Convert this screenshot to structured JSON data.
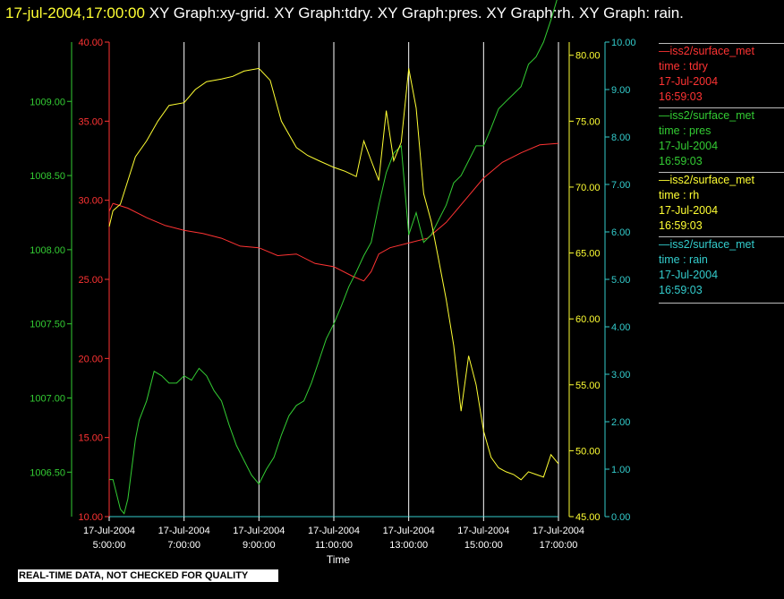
{
  "header": {
    "timestamp": "17-jul-2004,17:00:00",
    "graphs": "  XY Graph:xy-grid.  XY Graph:tdry.  XY Graph:pres.  XY Graph:rh.  XY Graph: rain."
  },
  "notice": "REAL-TIME DATA, NOT CHECKED FOR QUALITY",
  "colors": {
    "tdry": "#ff3333",
    "pres": "#33cc33",
    "rh": "#ffff33",
    "rain": "#33cccc",
    "grid": "#ffffff"
  },
  "legend": [
    {
      "name": "—iss2/surface_met",
      "var": "time : tdry",
      "date": "17-Jul-2004",
      "time": "16:59:03",
      "color": "#ff3333"
    },
    {
      "name": "—iss2/surface_met",
      "var": "time : pres",
      "date": "17-Jul-2004",
      "time": "16:59:03",
      "color": "#33cc33"
    },
    {
      "name": "—iss2/surface_met",
      "var": "time : rh",
      "date": "17-Jul-2004",
      "time": "16:59:03",
      "color": "#ffff33"
    },
    {
      "name": "—iss2/surface_met",
      "var": "time : rain",
      "date": "17-Jul-2004",
      "time": "16:59:03",
      "color": "#33cccc"
    }
  ],
  "chart_data": {
    "type": "line",
    "xlabel": "Time",
    "x_ticks": [
      {
        "date": "17-Jul-2004",
        "time": "5:00:00"
      },
      {
        "date": "17-Jul-2004",
        "time": "7:00:00"
      },
      {
        "date": "17-Jul-2004",
        "time": "9:00:00"
      },
      {
        "date": "17-Jul-2004",
        "time": "11:00:00"
      },
      {
        "date": "17-Jul-2004",
        "time": "13:00:00"
      },
      {
        "date": "17-Jul-2004",
        "time": "15:00:00"
      },
      {
        "date": "17-Jul-2004",
        "time": "17:00:00"
      }
    ],
    "xlim": [
      5,
      17
    ],
    "grid": "vertical",
    "axes": [
      {
        "series": "tdry",
        "ylim": [
          10,
          40
        ],
        "ticks": [
          "10.00",
          "15.00",
          "20.00",
          "25.00",
          "30.00",
          "35.00",
          "40.00"
        ]
      },
      {
        "series": "pres",
        "ylim": [
          1006.2,
          1009.4
        ],
        "ticks": [
          "1006.50",
          "1007.00",
          "1007.50",
          "1008.00",
          "1008.50",
          "1009.00"
        ]
      },
      {
        "series": "rh",
        "ylim": [
          45,
          81
        ],
        "ticks": [
          "45.00",
          "50.00",
          "55.00",
          "60.00",
          "65.00",
          "70.00",
          "75.00",
          "80.00"
        ]
      },
      {
        "series": "rain",
        "ylim": [
          0,
          10
        ],
        "ticks": [
          "0.00",
          "1.00",
          "2.00",
          "3.00",
          "4.00",
          "5.00",
          "6.00",
          "7.00",
          "8.00",
          "9.00",
          "10.00"
        ]
      }
    ],
    "series": [
      {
        "name": "tdry",
        "x": [
          5.0,
          5.1,
          5.5,
          6.0,
          6.5,
          7.0,
          7.5,
          8.0,
          8.5,
          9.0,
          9.5,
          10.0,
          10.5,
          11.0,
          11.5,
          11.8,
          12.0,
          12.2,
          12.5,
          13.0,
          13.5,
          14.0,
          14.5,
          15.0,
          15.5,
          16.0,
          16.5,
          17.0
        ],
        "values": [
          29.3,
          29.8,
          29.5,
          28.9,
          28.4,
          28.1,
          27.9,
          27.6,
          27.1,
          27.0,
          26.5,
          26.6,
          26.0,
          25.8,
          25.2,
          24.9,
          25.5,
          26.6,
          27.0,
          27.3,
          27.6,
          28.6,
          30.0,
          31.4,
          32.4,
          33.0,
          33.5,
          33.6
        ]
      },
      {
        "name": "pres",
        "x": [
          5.0,
          5.1,
          5.2,
          5.3,
          5.4,
          5.5,
          5.6,
          5.7,
          5.8,
          6.0,
          6.2,
          6.4,
          6.6,
          6.8,
          7.0,
          7.2,
          7.4,
          7.6,
          7.8,
          8.0,
          8.2,
          8.4,
          8.6,
          8.8,
          9.0,
          9.2,
          9.4,
          9.6,
          9.8,
          10.0,
          10.2,
          10.4,
          10.6,
          10.8,
          11.0,
          11.2,
          11.4,
          11.6,
          11.8,
          12.0,
          12.2,
          12.4,
          12.6,
          12.8,
          13.0,
          13.2,
          13.4,
          13.6,
          13.8,
          14.0,
          14.2,
          14.4,
          14.6,
          14.8,
          15.0,
          15.2,
          15.4,
          15.6,
          15.8,
          16.0,
          16.2,
          16.4,
          16.6,
          16.8,
          17.0
        ],
        "values": [
          1006.45,
          1006.45,
          1006.35,
          1006.25,
          1006.22,
          1006.32,
          1006.52,
          1006.72,
          1006.85,
          1006.98,
          1007.18,
          1007.15,
          1007.1,
          1007.1,
          1007.15,
          1007.12,
          1007.2,
          1007.15,
          1007.05,
          1006.98,
          1006.82,
          1006.68,
          1006.58,
          1006.48,
          1006.42,
          1006.52,
          1006.6,
          1006.75,
          1006.88,
          1006.95,
          1006.98,
          1007.1,
          1007.25,
          1007.4,
          1007.5,
          1007.62,
          1007.75,
          1007.85,
          1007.96,
          1008.05,
          1008.3,
          1008.52,
          1008.65,
          1008.7,
          1008.1,
          1008.25,
          1008.05,
          1008.1,
          1008.2,
          1008.3,
          1008.45,
          1008.5,
          1008.6,
          1008.7,
          1008.7,
          1008.82,
          1008.95,
          1009.0,
          1009.05,
          1009.1,
          1009.25,
          1009.3,
          1009.4,
          1009.55,
          1009.72
        ]
      },
      {
        "name": "rh",
        "x": [
          5.0,
          5.1,
          5.3,
          5.5,
          5.7,
          6.0,
          6.3,
          6.6,
          7.0,
          7.3,
          7.6,
          8.0,
          8.3,
          8.6,
          9.0,
          9.3,
          9.6,
          10.0,
          10.3,
          10.6,
          11.0,
          11.3,
          11.6,
          11.8,
          12.0,
          12.2,
          12.4,
          12.6,
          12.8,
          13.0,
          13.2,
          13.4,
          13.6,
          13.8,
          14.0,
          14.2,
          14.4,
          14.6,
          14.8,
          15.0,
          15.2,
          15.4,
          15.6,
          15.8,
          16.0,
          16.2,
          16.4,
          16.6,
          16.8,
          17.0
        ],
        "values": [
          67.0,
          68.2,
          68.7,
          70.5,
          72.3,
          73.5,
          75.0,
          76.2,
          76.4,
          77.4,
          78.0,
          78.2,
          78.4,
          78.8,
          79.0,
          78.1,
          75.0,
          73.0,
          72.4,
          72.0,
          71.5,
          71.2,
          70.8,
          73.5,
          72.0,
          70.5,
          75.8,
          72.0,
          73.4,
          79.0,
          76.0,
          69.5,
          67.4,
          64.5,
          61.5,
          58.0,
          53.0,
          57.2,
          55.0,
          51.5,
          49.5,
          48.7,
          48.4,
          48.2,
          47.8,
          48.4,
          48.2,
          48.0,
          49.7,
          49.0
        ]
      },
      {
        "name": "rain",
        "x": [
          5.0,
          17.0
        ],
        "values": [
          0.0,
          0.0
        ]
      }
    ]
  }
}
